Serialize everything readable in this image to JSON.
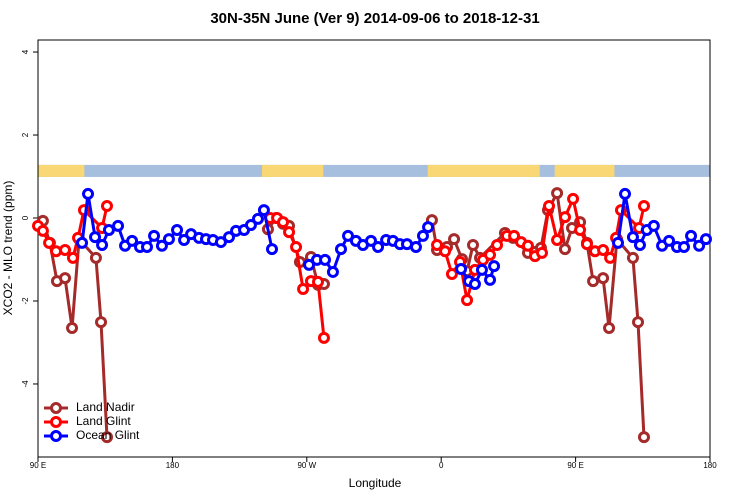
{
  "chart_data": {
    "type": "line",
    "title": "30N-35N June (Ver 9)   2014-09-06 to 2018-12-31",
    "x_label": "Longitude",
    "y_label": "XCO2 - MLO trend (ppm)",
    "xlim": [
      90,
      540
    ],
    "ylim": [
      -5.76,
      4.29
    ],
    "xticks": [
      {
        "value": 90,
        "label": "90 E"
      },
      180,
      {
        "value": 270,
        "label": "90 W"
      },
      {
        "value": 360,
        "label": "0"
      },
      {
        "value": 450,
        "label": "90 E"
      },
      {
        "value": 540,
        "label": "180"
      }
    ],
    "yticks": [
      -4,
      -2,
      0,
      2,
      4
    ],
    "legend": "bottom-left",
    "surface_strip": {
      "ylim": [
        0.99,
        1.28
      ],
      "land_color": "#f8d774",
      "ocean_color": "#a7bfde",
      "land": [
        [
          90,
          121
        ],
        [
          240,
          281
        ],
        [
          351,
          426
        ],
        [
          436,
          476
        ]
      ]
    },
    "series": [
      {
        "name": "Land Nadir",
        "color": "#a52a2a",
        "x": [
          93.3,
          98.0,
          102.7,
          108.1,
          112.8,
          117.5,
          128.8,
          132.2,
          136.2,
          null,
          244.0,
          249.4,
          254.1,
          258.1,
          265.4,
          272.8,
          277.5,
          281.5,
          null,
          353.8,
          357.2,
          363.9,
          368.6,
          373.9,
          377.3,
          381.3,
          386.0,
          402.7,
          408.1,
          418.1,
          422.8,
          426.8,
          431.5,
          437.6,
          442.9,
          447.6,
          453.0,
          457.6,
          461.7,
          468.4,
          472.4,
          477.7,
          488.4,
          491.8,
          495.8
        ],
        "values": [
          -0.07,
          -0.6,
          -1.52,
          -1.45,
          -2.65,
          -0.51,
          -0.96,
          -2.51,
          -5.28,
          null,
          -0.27,
          0.0,
          -0.14,
          -0.19,
          -1.06,
          -0.94,
          -1.61,
          -1.59,
          null,
          -0.05,
          -0.77,
          -0.7,
          -0.51,
          -0.99,
          -1.28,
          -0.65,
          -0.96,
          -0.36,
          -0.48,
          -0.84,
          -0.82,
          -0.72,
          0.19,
          0.6,
          -0.75,
          -0.24,
          -0.1,
          -0.6,
          -1.52,
          -1.45,
          -2.65,
          -0.51,
          -0.96,
          -2.51,
          -5.28
        ]
      },
      {
        "name": "Land Glint",
        "color": "#ff0000",
        "x": [
          90.0,
          93.3,
          97.4,
          102.1,
          108.1,
          113.4,
          116.8,
          120.8,
          132.9,
          136.2,
          null,
          245.4,
          250.1,
          254.1,
          258.1,
          262.8,
          267.5,
          272.8,
          277.5,
          281.5,
          null,
          357.2,
          362.6,
          367.2,
          372.6,
          377.3,
          382.6,
          388.0,
          392.7,
          397.4,
          404.0,
          408.8,
          413.5,
          418.1,
          422.8,
          427.5,
          432.2,
          437.6,
          442.9,
          448.3,
          453.0,
          457.6,
          463.0,
          468.4,
          473.1,
          477.1,
          480.4,
          492.5,
          495.8
        ],
        "values": [
          -0.19,
          -0.31,
          -0.6,
          -0.8,
          -0.77,
          -0.96,
          -0.48,
          0.19,
          -0.24,
          0.29,
          null,
          0.0,
          0.0,
          -0.1,
          -0.34,
          -0.7,
          -1.71,
          -1.52,
          -1.54,
          -2.89,
          null,
          -0.65,
          -0.8,
          -1.35,
          -1.06,
          -1.98,
          -1.25,
          -1.01,
          -0.89,
          -0.65,
          -0.43,
          -0.43,
          -0.58,
          -0.67,
          -0.92,
          -0.84,
          0.29,
          -0.53,
          0.02,
          0.46,
          -0.29,
          -0.63,
          -0.8,
          -0.77,
          -0.96,
          -0.48,
          0.19,
          -0.24,
          0.29
        ]
      },
      {
        "name": "Ocean Glint",
        "color": "#0000ff",
        "x": [
          119.5,
          123.5,
          128.2,
          132.9,
          137.5,
          143.6,
          148.3,
          153.0,
          158.3,
          163.0,
          167.7,
          173.0,
          177.7,
          183.1,
          187.8,
          192.5,
          197.8,
          202.5,
          207.2,
          212.5,
          217.9,
          222.6,
          228.0,
          232.6,
          237.3,
          241.3,
          246.7,
          null,
          271.5,
          276.8,
          282.2,
          287.5,
          292.9,
          297.6,
          302.9,
          307.6,
          313.0,
          317.7,
          323.1,
          327.7,
          332.4,
          337.1,
          343.1,
          347.8,
          351.2,
          null,
          373.3,
          378.6,
          382.6,
          387.3,
          392.7,
          395.4,
          null,
          478.4,
          483.1,
          488.4,
          493.1,
          497.7,
          502.4,
          507.9,
          512.6,
          517.9,
          522.6,
          527.3,
          532.7,
          537.3
        ],
        "values": [
          -0.6,
          0.58,
          -0.46,
          -0.65,
          -0.29,
          -0.19,
          -0.67,
          -0.55,
          -0.7,
          -0.7,
          -0.43,
          -0.67,
          -0.51,
          -0.29,
          -0.53,
          -0.39,
          -0.48,
          -0.51,
          -0.53,
          -0.58,
          -0.46,
          -0.31,
          -0.29,
          -0.17,
          -0.02,
          0.19,
          -0.75,
          null,
          -1.13,
          -1.01,
          -1.01,
          -1.3,
          -0.75,
          -0.43,
          -0.55,
          -0.65,
          -0.55,
          -0.7,
          -0.53,
          -0.55,
          -0.63,
          -0.63,
          -0.7,
          -0.43,
          -0.22,
          null,
          -1.23,
          -1.52,
          -1.59,
          -1.25,
          -1.49,
          -1.16,
          null,
          -0.6,
          0.58,
          -0.46,
          -0.65,
          -0.29,
          -0.19,
          -0.67,
          -0.55,
          -0.7,
          -0.7,
          -0.43,
          -0.67,
          -0.51
        ]
      }
    ]
  }
}
